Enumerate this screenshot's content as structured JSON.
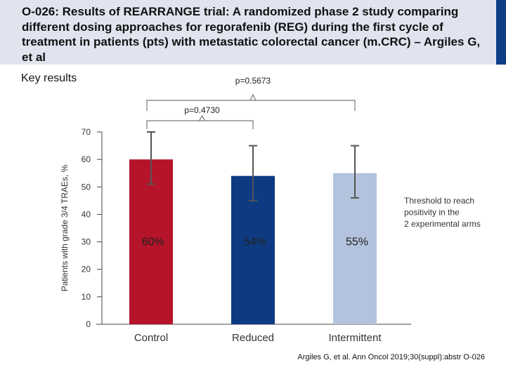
{
  "slide": {
    "title": "O-026: Results of REARRANGE trial: A randomized phase 2 study comparing different dosing approaches for regorafenib (REG) during the first cycle of treatment in patients (pts) with metastatic colorectal cancer (m.CRC) – Argiles G, et al",
    "subtitle": "Key results",
    "citation": "Argiles G, et al. Ann Oncol 2019;30(suppl):abstr O-026",
    "colors": {
      "header_bg": "#dfe4ee",
      "header_stripe": "#0e3f86"
    }
  },
  "chart_data": {
    "type": "bar",
    "categories": [
      "Control",
      "Reduced",
      "Intermittent"
    ],
    "values": [
      60,
      54,
      55
    ],
    "value_labels": [
      "60%",
      "54%",
      "55%"
    ],
    "error_bars": [
      {
        "low": 51,
        "high": 70
      },
      {
        "low": 45,
        "high": 65
      },
      {
        "low": 46,
        "high": 65
      }
    ],
    "colors": [
      "#b5142a",
      "#0e3a82",
      "#b3c3dd"
    ],
    "ylabel": "Patients with grade 3/4 TRAEs, %",
    "ylim": [
      0,
      70
    ],
    "yticks": [
      0,
      10,
      20,
      30,
      40,
      50,
      60,
      70
    ],
    "threshold_note": "Threshold to reach positivity in the 2 experimental arms",
    "comparisons": [
      {
        "label": "p=0.5673",
        "from": "Control",
        "to": "Intermittent"
      },
      {
        "label": "p=0.4730",
        "from": "Control",
        "to": "Reduced"
      }
    ],
    "grid": false
  }
}
